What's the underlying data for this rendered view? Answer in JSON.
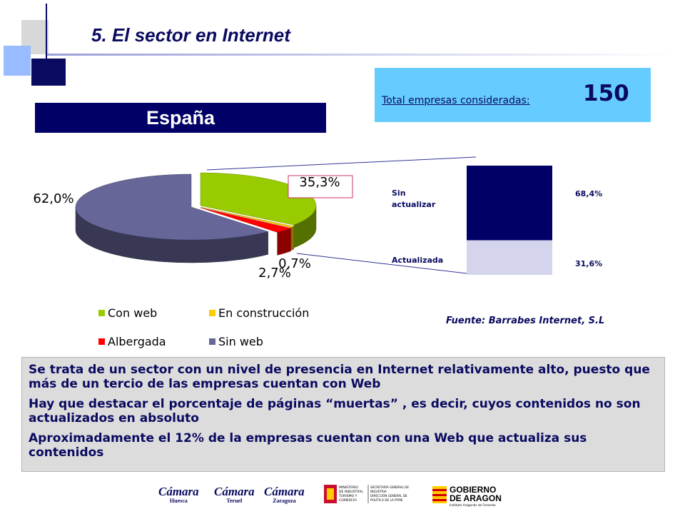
{
  "header": {
    "title": "5. El sector en Internet"
  },
  "region": {
    "label": "España"
  },
  "total": {
    "label": "Total empresas consideradas:",
    "value": "150"
  },
  "chart_data": [
    {
      "type": "pie",
      "categories": [
        "Con web",
        "En construcción",
        "Albergada",
        "Sin web"
      ],
      "values": [
        35.3,
        0.7,
        2.7,
        62.0
      ],
      "data_labels": [
        "35,3%",
        "0,7%",
        "2,7%",
        "62,0%"
      ],
      "colors": [
        "#99cc00",
        "#ffcc00",
        "#ff0000",
        "#666699"
      ],
      "legend": "bottom",
      "exploded": [
        "Con web",
        "En construcción",
        "Albergada"
      ]
    },
    {
      "type": "bar",
      "stacked": true,
      "categories": [
        "Sin actualizar",
        "Actualizada"
      ],
      "values": [
        68.4,
        31.6
      ],
      "data_labels": [
        "68,4%",
        "31,6%"
      ],
      "colors": [
        "#000066",
        "#d4d4ec"
      ]
    }
  ],
  "source": "Fuente: Barrabes Internet, S.L",
  "notes": [
    "Se trata de un sector con un nivel de presencia en Internet relativamente alto, puesto que más de un tercio de las empresas cuentan con Web",
    "Hay que destacar el porcentaje de páginas “muertas” , es decir, cuyos contenidos no son actualizados en absoluto",
    "Aproximadamente el 12% de la empresas cuentan con una Web que actualiza sus contenidos"
  ],
  "footer": {
    "logos": [
      {
        "name": "Cámara",
        "sub": "Huesca"
      },
      {
        "name": "Cámara",
        "sub": "Teruel"
      },
      {
        "name": "Cámara",
        "sub": "Zaragoza"
      }
    ],
    "ministry": {
      "left": [
        "MINISTERIO",
        "DE INDUSTRIA,",
        "TURISMO Y",
        "COMERCIO"
      ],
      "right": [
        "SECRETARÍA GENERAL DE",
        "INDUSTRIA",
        "DIRECCIÓN GENERAL DE",
        "POLÍTICA DE LA PYME"
      ]
    },
    "gobierno": {
      "line1": "GOBIERNO",
      "line2": "DE ARAGON",
      "sub": "Instituto Aragonés de Fomento"
    }
  }
}
